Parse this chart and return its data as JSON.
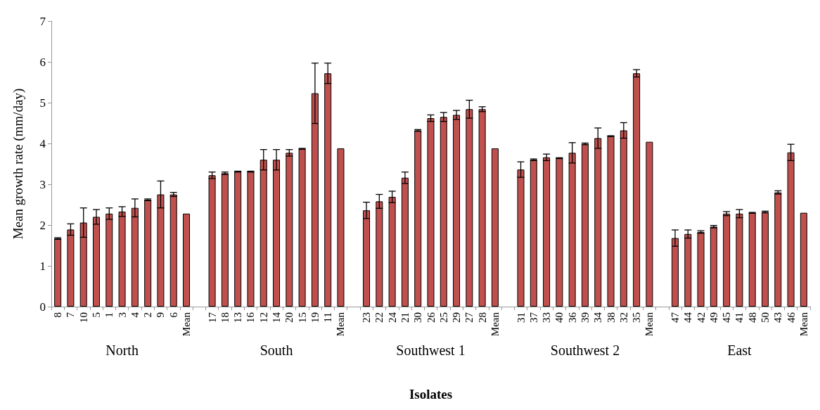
{
  "chart_data": {
    "type": "bar",
    "xlabel": "Isolates",
    "ylabel": "Mean growth rate (mm/day)",
    "categories": [
      "8",
      "7",
      "10",
      "5",
      "1",
      "3",
      "4",
      "2",
      "9",
      "6",
      "Mean",
      null,
      "17",
      "18",
      "13",
      "16",
      "12",
      "14",
      "20",
      "15",
      "19",
      "11",
      "Mean",
      null,
      "23",
      "22",
      "24",
      "21",
      "30",
      "26",
      "25",
      "29",
      "27",
      "28",
      "Mean",
      null,
      "31",
      "37",
      "33",
      "40",
      "36",
      "39",
      "34",
      "38",
      "32",
      "35",
      "Mean",
      null,
      "47",
      "44",
      "42",
      "49",
      "45",
      "41",
      "48",
      "50",
      "43",
      "46",
      "Mean"
    ],
    "values": [
      1.67,
      1.89,
      2.06,
      2.2,
      2.28,
      2.33,
      2.42,
      2.62,
      2.75,
      2.75,
      2.28,
      null,
      3.22,
      3.27,
      3.31,
      3.31,
      3.6,
      3.6,
      3.77,
      3.87,
      5.23,
      5.72,
      3.88,
      null,
      2.36,
      2.58,
      2.69,
      3.16,
      4.32,
      4.62,
      4.65,
      4.7,
      4.84,
      4.84,
      3.88,
      null,
      3.36,
      3.6,
      3.66,
      3.64,
      3.77,
      3.99,
      4.13,
      4.18,
      4.32,
      5.72,
      4.04,
      null,
      1.68,
      1.78,
      1.83,
      1.96,
      2.28,
      2.28,
      2.3,
      2.32,
      2.8,
      3.78,
      2.3
    ],
    "errors": [
      0.02,
      0.14,
      0.36,
      0.18,
      0.14,
      0.12,
      0.22,
      0.02,
      0.33,
      0.05,
      null,
      null,
      0.08,
      0.03,
      0.01,
      0.01,
      0.25,
      0.25,
      0.08,
      0.01,
      0.74,
      0.25,
      null,
      null,
      0.2,
      0.17,
      0.14,
      0.14,
      0.02,
      0.08,
      0.11,
      0.11,
      0.22,
      0.06,
      null,
      null,
      0.19,
      0.02,
      0.08,
      0.01,
      0.25,
      0.02,
      0.25,
      0.01,
      0.19,
      0.09,
      null,
      null,
      0.2,
      0.1,
      0.03,
      0.03,
      0.05,
      0.1,
      0.01,
      0.02,
      0.04,
      0.2,
      null
    ],
    "color": "#c0504d",
    "ylim": [
      0,
      7
    ],
    "yticks": [
      0,
      1,
      2,
      3,
      4,
      5,
      6,
      7
    ],
    "grid": false,
    "annotations": [
      "North",
      "South",
      "Southwest 1",
      "Southwest 2",
      "East"
    ]
  }
}
